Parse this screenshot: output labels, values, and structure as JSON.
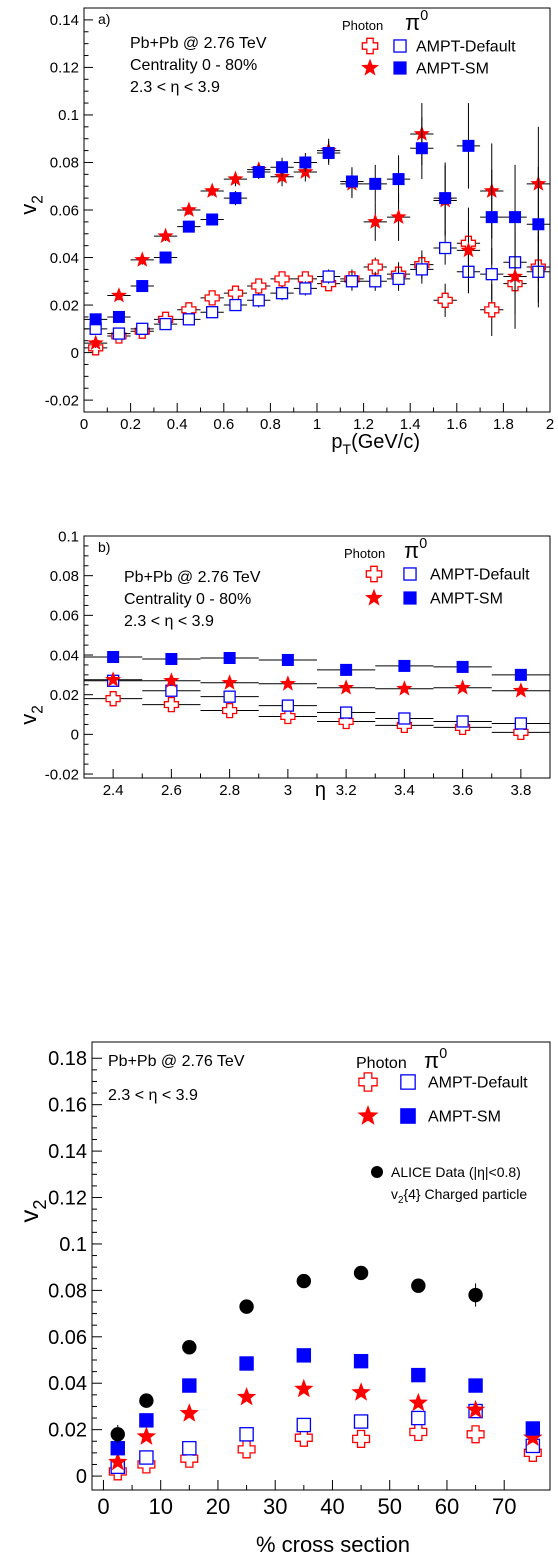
{
  "colors": {
    "photon": "#ff0000",
    "pi0": "#0000ff",
    "alice": "#000000"
  },
  "chart_data": [
    {
      "type": "scatter",
      "panel": "a)",
      "xlabel": "p_T(GeV/c)",
      "ylabel": "v_2",
      "xlim": [
        0,
        2
      ],
      "ylim": [
        -0.025,
        0.145
      ],
      "xticks": [
        0,
        0.2,
        0.4,
        0.6,
        0.8,
        1,
        1.2,
        1.4,
        1.6,
        1.8,
        2
      ],
      "xticklabels": [
        "0",
        "0.2",
        "0.4",
        "0.6",
        "0.8",
        "1",
        "1.2",
        "1.4",
        "1.6",
        "1.8",
        "2"
      ],
      "yticks": [
        -0.02,
        0,
        0.02,
        0.04,
        0.06,
        0.08,
        0.1,
        0.12,
        0.14
      ],
      "yticklabels": [
        "-0.02",
        "0",
        "0.02",
        "0.04",
        "0.06",
        "0.08",
        "0.1",
        "0.12",
        "0.14"
      ],
      "annotations": [
        "Pb+Pb @ 2.76 TeV",
        "Centrality 0 - 80%",
        "2.3 < η < 3.9"
      ],
      "legend_headers": [
        "Photon",
        "π0"
      ],
      "legend_labels": [
        "AMPT-Default",
        "AMPT-SM"
      ],
      "x_bin_halfwidth": 0.05,
      "series": [
        {
          "name": "Photon AMPT-Default",
          "marker": "open-cross",
          "x": [
            0.05,
            0.15,
            0.25,
            0.35,
            0.45,
            0.55,
            0.65,
            0.75,
            0.85,
            0.95,
            1.05,
            1.15,
            1.25,
            1.35,
            1.45,
            1.55,
            1.65,
            1.75,
            1.85,
            1.95
          ],
          "y": [
            0.002,
            0.007,
            0.009,
            0.014,
            0.018,
            0.023,
            0.025,
            0.028,
            0.031,
            0.031,
            0.029,
            0.031,
            0.036,
            0.033,
            0.037,
            0.022,
            0.046,
            0.018,
            0.029,
            0.036
          ],
          "err": [
            0.002,
            0.002,
            0.002,
            0.002,
            0.002,
            0.002,
            0.002,
            0.003,
            0.003,
            0.003,
            0.003,
            0.004,
            0.004,
            0.005,
            0.006,
            0.007,
            0.009,
            0.011,
            0.013,
            0.015
          ]
        },
        {
          "name": "π0 AMPT-Default",
          "marker": "open-square",
          "x": [
            0.05,
            0.15,
            0.25,
            0.35,
            0.45,
            0.55,
            0.65,
            0.75,
            0.85,
            0.95,
            1.05,
            1.15,
            1.25,
            1.35,
            1.45,
            1.55,
            1.65,
            1.75,
            1.85,
            1.95
          ],
          "y": [
            0.01,
            0.008,
            0.01,
            0.012,
            0.014,
            0.017,
            0.02,
            0.022,
            0.025,
            0.027,
            0.032,
            0.03,
            0.03,
            0.031,
            0.035,
            0.044,
            0.034,
            0.033,
            0.038,
            0.034
          ],
          "err": [
            0.002,
            0.002,
            0.002,
            0.002,
            0.002,
            0.002,
            0.002,
            0.003,
            0.003,
            0.003,
            0.003,
            0.004,
            0.004,
            0.005,
            0.006,
            0.007,
            0.009,
            0.011,
            0.013,
            0.015
          ]
        },
        {
          "name": "Photon AMPT-SM",
          "marker": "star",
          "x": [
            0.05,
            0.15,
            0.25,
            0.35,
            0.45,
            0.55,
            0.65,
            0.75,
            0.85,
            0.95,
            1.05,
            1.15,
            1.25,
            1.35,
            1.45,
            1.55,
            1.65,
            1.75,
            1.85,
            1.95
          ],
          "y": [
            0.004,
            0.024,
            0.039,
            0.049,
            0.06,
            0.068,
            0.073,
            0.077,
            0.074,
            0.076,
            0.085,
            0.071,
            0.055,
            0.057,
            0.092,
            0.064,
            0.043,
            0.068,
            0.032,
            0.071
          ],
          "err": [
            0.002,
            0.002,
            0.002,
            0.002,
            0.002,
            0.002,
            0.003,
            0.003,
            0.004,
            0.004,
            0.005,
            0.006,
            0.008,
            0.01,
            0.013,
            0.015,
            0.018,
            0.02,
            0.022,
            0.024
          ]
        },
        {
          "name": "π0 AMPT-SM",
          "marker": "filled-square",
          "x": [
            0.05,
            0.15,
            0.25,
            0.35,
            0.45,
            0.55,
            0.65,
            0.75,
            0.85,
            0.95,
            1.05,
            1.15,
            1.25,
            1.35,
            1.45,
            1.55,
            1.65,
            1.75,
            1.85,
            1.95
          ],
          "y": [
            0.014,
            0.015,
            0.028,
            0.04,
            0.053,
            0.056,
            0.065,
            0.076,
            0.078,
            0.08,
            0.084,
            0.072,
            0.071,
            0.073,
            0.086,
            0.065,
            0.087,
            0.057,
            0.057,
            0.054
          ],
          "err": [
            0.002,
            0.002,
            0.002,
            0.002,
            0.002,
            0.002,
            0.003,
            0.003,
            0.004,
            0.004,
            0.005,
            0.006,
            0.008,
            0.01,
            0.013,
            0.015,
            0.018,
            0.02,
            0.022,
            0.024
          ]
        }
      ]
    },
    {
      "type": "scatter",
      "panel": "b)",
      "xlabel": "η",
      "ylabel": "v_2",
      "xlim": [
        2.3,
        3.9
      ],
      "ylim": [
        -0.022,
        0.1
      ],
      "xticks": [
        2.4,
        2.6,
        2.8,
        3,
        3.2,
        3.4,
        3.6,
        3.8
      ],
      "xticklabels": [
        "2.4",
        "2.6",
        "2.8",
        "3",
        "3.2",
        "3.4",
        "3.6",
        "3.8"
      ],
      "yticks": [
        -0.02,
        0,
        0.02,
        0.04,
        0.06,
        0.08,
        0.1
      ],
      "yticklabels": [
        "-0.02",
        "0",
        "0.02",
        "0.04",
        "0.06",
        "0.08",
        "0.1"
      ],
      "annotations": [
        "Pb+Pb @ 2.76 TeV",
        "Centrality 0 - 80%",
        "2.3 < η < 3.9"
      ],
      "legend_headers": [
        "Photon",
        "π0"
      ],
      "legend_labels": [
        "AMPT-Default",
        "AMPT-SM"
      ],
      "x_bin_halfwidth": 0.1,
      "series": [
        {
          "name": "Photon AMPT-Default",
          "marker": "open-cross",
          "x": [
            2.4,
            2.6,
            2.8,
            3.0,
            3.2,
            3.4,
            3.6,
            3.8
          ],
          "y": [
            0.018,
            0.015,
            0.012,
            0.009,
            0.0065,
            0.0045,
            0.0035,
            0.001
          ],
          "err": [
            0.001,
            0.001,
            0.001,
            0.001,
            0.001,
            0.001,
            0.001,
            0.001
          ]
        },
        {
          "name": "π0 AMPT-Default",
          "marker": "open-square",
          "x": [
            2.4,
            2.6,
            2.8,
            3.0,
            3.2,
            3.4,
            3.6,
            3.8
          ],
          "y": [
            0.027,
            0.022,
            0.019,
            0.0145,
            0.011,
            0.008,
            0.0065,
            0.0055
          ],
          "err": [
            0.001,
            0.001,
            0.001,
            0.001,
            0.001,
            0.001,
            0.001,
            0.001
          ]
        },
        {
          "name": "Photon AMPT-SM",
          "marker": "star",
          "x": [
            2.4,
            2.6,
            2.8,
            3.0,
            3.2,
            3.4,
            3.6,
            3.8
          ],
          "y": [
            0.0275,
            0.027,
            0.026,
            0.0255,
            0.0235,
            0.023,
            0.0235,
            0.022
          ],
          "err": [
            0.001,
            0.001,
            0.001,
            0.001,
            0.001,
            0.001,
            0.001,
            0.001
          ]
        },
        {
          "name": "π0 AMPT-SM",
          "marker": "filled-square",
          "x": [
            2.4,
            2.6,
            2.8,
            3.0,
            3.2,
            3.4,
            3.6,
            3.8
          ],
          "y": [
            0.039,
            0.038,
            0.0385,
            0.0375,
            0.0325,
            0.0345,
            0.034,
            0.03
          ],
          "err": [
            0.001,
            0.001,
            0.001,
            0.001,
            0.001,
            0.001,
            0.001,
            0.001
          ]
        }
      ]
    },
    {
      "type": "scatter",
      "panel": "",
      "xlabel": "% cross section",
      "ylabel": "v_2",
      "xlim": [
        -2,
        78
      ],
      "ylim": [
        -0.006,
        0.187
      ],
      "xticks": [
        0,
        10,
        20,
        30,
        40,
        50,
        60,
        70
      ],
      "xticklabels": [
        "0",
        "10",
        "20",
        "30",
        "40",
        "50",
        "60",
        "70"
      ],
      "yticks": [
        0,
        0.02,
        0.04,
        0.06,
        0.08,
        0.1,
        0.12,
        0.14,
        0.16,
        0.18
      ],
      "yticklabels": [
        "0",
        "0.02",
        "0.04",
        "0.06",
        "0.08",
        "0.1",
        "0.12",
        "0.14",
        "0.16",
        "0.18"
      ],
      "annotations": [
        "Pb+Pb @ 2.76 TeV",
        "2.3 < η < 3.9"
      ],
      "legend_headers": [
        "Photon",
        "π0"
      ],
      "legend_labels": [
        "AMPT-Default",
        "AMPT-SM"
      ],
      "alice_labels": [
        "ALICE Data (|η|<0.8)",
        "v2{4} Charged particle"
      ],
      "x_bin_halfwidth": 0,
      "series": [
        {
          "name": "Photon AMPT-Default",
          "marker": "open-cross",
          "x": [
            2.5,
            7.5,
            15,
            25,
            35,
            45,
            55,
            65,
            75
          ],
          "y": [
            0.002,
            0.005,
            0.0075,
            0.0115,
            0.0165,
            0.016,
            0.019,
            0.018,
            0.01
          ],
          "err": [
            0.001,
            0.001,
            0.001,
            0.001,
            0.001,
            0.001,
            0.001,
            0.001,
            0.002
          ]
        },
        {
          "name": "π0 AMPT-Default",
          "marker": "open-square",
          "x": [
            2.5,
            7.5,
            15,
            25,
            35,
            45,
            55,
            65,
            75
          ],
          "y": [
            0.004,
            0.008,
            0.012,
            0.018,
            0.022,
            0.0235,
            0.025,
            0.028,
            0.013
          ],
          "err": [
            0.001,
            0.001,
            0.001,
            0.001,
            0.001,
            0.001,
            0.001,
            0.001,
            0.002
          ]
        },
        {
          "name": "Photon AMPT-SM",
          "marker": "star",
          "x": [
            2.5,
            7.5,
            15,
            25,
            35,
            45,
            55,
            65,
            75
          ],
          "y": [
            0.006,
            0.017,
            0.027,
            0.034,
            0.0375,
            0.036,
            0.0315,
            0.0285,
            0.0165
          ],
          "err": [
            0.001,
            0.001,
            0.001,
            0.001,
            0.001,
            0.001,
            0.001,
            0.001,
            0.002
          ]
        },
        {
          "name": "π0 AMPT-SM",
          "marker": "filled-square",
          "x": [
            2.5,
            7.5,
            15,
            25,
            35,
            45,
            55,
            65,
            75
          ],
          "y": [
            0.012,
            0.024,
            0.039,
            0.0485,
            0.052,
            0.0495,
            0.0435,
            0.039,
            0.0205
          ],
          "err": [
            0.001,
            0.001,
            0.001,
            0.001,
            0.001,
            0.001,
            0.001,
            0.001,
            0.002
          ]
        },
        {
          "name": "ALICE Data (|η|<0.8)",
          "marker": "filled-circle",
          "x": [
            2.5,
            7.5,
            15,
            25,
            35,
            45,
            55,
            65
          ],
          "y": [
            0.018,
            0.0325,
            0.0555,
            0.073,
            0.084,
            0.0875,
            0.082,
            0.078
          ],
          "err": [
            0.004,
            0.001,
            0.001,
            0.001,
            0.001,
            0.001,
            0.002,
            0.005
          ]
        }
      ]
    }
  ]
}
